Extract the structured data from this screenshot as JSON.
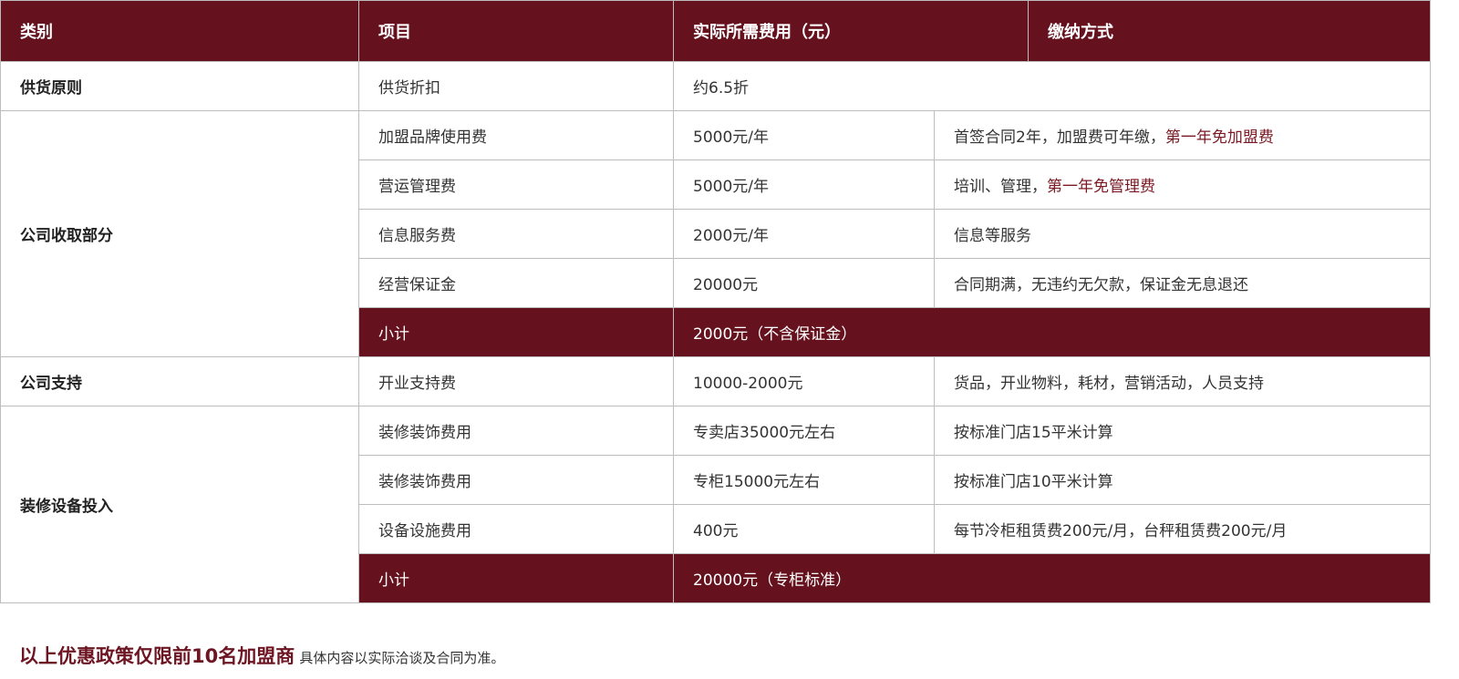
{
  "header": [
    "类别",
    "项目",
    "实际所需费用（元）",
    "缴纳方式"
  ],
  "rows": {
    "supply": {
      "category": "供货原则",
      "item": "供货折扣",
      "cost": "约6.5折"
    },
    "company": {
      "category": "公司收取部分",
      "r0": {
        "item": "加盟品牌使用费",
        "cost": "5000元/年",
        "pay": "首签合同2年，加盟费可年缴，",
        "pay_hl": "第一年免加盟费"
      },
      "r1": {
        "item": "营运管理费",
        "cost": "5000元/年",
        "pay": "培训、管理，",
        "pay_hl": "第一年免管理费"
      },
      "r2": {
        "item": "信息服务费",
        "cost": "2000元/年",
        "pay": "信息等服务"
      },
      "r3": {
        "item": "经营保证金",
        "cost": "20000元",
        "pay": "合同期满，无违约无欠款，保证金无息退还"
      },
      "subtotal": {
        "label": "小计",
        "value": "2000元（不含保证金）"
      }
    },
    "support": {
      "category": "公司支持",
      "item": "开业支持费",
      "cost": "10000-2000元",
      "pay": "货品，开业物料，耗材，营销活动，人员支持"
    },
    "decor": {
      "category": "装修设备投入",
      "r0": {
        "item": "装修装饰费用",
        "cost": "专卖店35000元左右",
        "pay": "按标准门店15平米计算"
      },
      "r1": {
        "item": "装修装饰费用",
        "cost": "专柜15000元左右",
        "pay": "按标准门店10平米计算"
      },
      "r2": {
        "item": "设备设施费用",
        "cost": "400元",
        "pay": "每节冷柜租赁费200元/月，台秤租赁费200元/月"
      },
      "subtotal": {
        "label": "小计",
        "value": "20000元（专柜标准）"
      }
    }
  },
  "footer": {
    "highlight": "以上优惠政策仅限前10名加盟商",
    "note": "具体内容以实际洽谈及合同为准。"
  },
  "colors": {
    "header_bg": "#65121e",
    "highlight": "#7a1a24"
  }
}
